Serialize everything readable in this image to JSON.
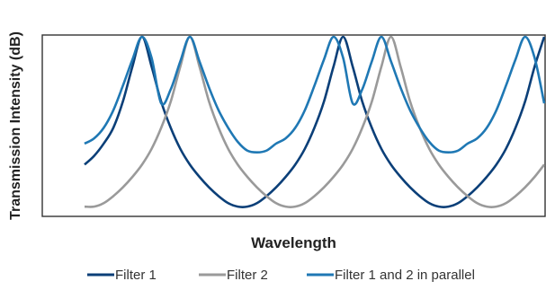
{
  "chart_data": {
    "type": "line",
    "title": "",
    "xlabel": "Wavelength",
    "ylabel": "Transmission Intensity (dB)",
    "xlim": [
      0,
      12
    ],
    "ylim": [
      0,
      1
    ],
    "grid": false,
    "legend_position": "bottom",
    "series": [
      {
        "name": "Filter 1",
        "color": "#0b3f78",
        "x": [
          0.0,
          0.25,
          0.5,
          0.75,
          1.0,
          1.25,
          1.5,
          1.75,
          2.0,
          2.25,
          2.5,
          2.75,
          3.0,
          3.25,
          3.5,
          3.75,
          4.0,
          4.25,
          4.5,
          4.75,
          5.0,
          5.25,
          5.5,
          5.75,
          6.0,
          6.25,
          6.5,
          6.75,
          7.0,
          7.25,
          7.5,
          7.75,
          8.0,
          8.25,
          8.5,
          8.75,
          9.0,
          9.25,
          9.5,
          9.75,
          10.0,
          10.25,
          10.5,
          10.75,
          11.0,
          11.25,
          11.5,
          11.75,
          12.0
        ],
        "y": [
          0.27,
          0.32,
          0.39,
          0.48,
          0.63,
          0.83,
          1.0,
          0.83,
          0.63,
          0.48,
          0.36,
          0.27,
          0.2,
          0.14,
          0.09,
          0.05,
          0.03,
          0.03,
          0.05,
          0.09,
          0.14,
          0.2,
          0.27,
          0.36,
          0.48,
          0.63,
          0.83,
          1.0,
          0.83,
          0.63,
          0.48,
          0.36,
          0.27,
          0.2,
          0.14,
          0.09,
          0.05,
          0.03,
          0.03,
          0.05,
          0.09,
          0.14,
          0.2,
          0.27,
          0.36,
          0.48,
          0.63,
          0.83,
          1.0
        ]
      },
      {
        "name": "Filter 2",
        "color": "#9a9a9a",
        "x": [
          0.0,
          0.25,
          0.5,
          0.75,
          1.0,
          1.25,
          1.5,
          1.75,
          2.0,
          2.25,
          2.5,
          2.75,
          3.0,
          3.25,
          3.5,
          3.75,
          4.0,
          4.25,
          4.5,
          4.75,
          5.0,
          5.25,
          5.5,
          5.75,
          6.0,
          6.25,
          6.5,
          6.75,
          7.0,
          7.25,
          7.5,
          7.75,
          8.0,
          8.25,
          8.5,
          8.75,
          9.0,
          9.25,
          9.5,
          9.75,
          10.0,
          10.25,
          10.5,
          10.75,
          11.0,
          11.25,
          11.5,
          11.75,
          12.0
        ],
        "y": [
          0.03,
          0.03,
          0.05,
          0.09,
          0.14,
          0.2,
          0.27,
          0.36,
          0.48,
          0.63,
          0.83,
          1.0,
          0.83,
          0.63,
          0.48,
          0.36,
          0.27,
          0.2,
          0.14,
          0.09,
          0.05,
          0.03,
          0.03,
          0.05,
          0.09,
          0.14,
          0.2,
          0.27,
          0.36,
          0.48,
          0.63,
          0.83,
          1.0,
          0.83,
          0.63,
          0.48,
          0.36,
          0.27,
          0.2,
          0.14,
          0.09,
          0.05,
          0.03,
          0.03,
          0.05,
          0.09,
          0.14,
          0.2,
          0.27
        ]
      },
      {
        "name": "Filter 1 and 2 in parallel",
        "color": "#1f78b4",
        "x": [
          0.0,
          0.25,
          0.5,
          0.75,
          1.0,
          1.25,
          1.5,
          1.75,
          2.0,
          2.25,
          2.5,
          2.75,
          3.0,
          3.25,
          3.5,
          3.75,
          4.0,
          4.25,
          4.5,
          4.75,
          5.0,
          5.25,
          5.5,
          5.75,
          6.0,
          6.25,
          6.5,
          6.75,
          7.0,
          7.25,
          7.5,
          7.75,
          8.0,
          8.25,
          8.5,
          8.75,
          9.0,
          9.25,
          9.5,
          9.75,
          10.0,
          10.25,
          10.5,
          10.75,
          11.0,
          11.25,
          11.5,
          11.75,
          12.0
        ],
        "y": [
          0.39,
          0.42,
          0.48,
          0.58,
          0.72,
          0.87,
          1.0,
          0.88,
          0.62,
          0.7,
          0.86,
          1.0,
          0.86,
          0.71,
          0.58,
          0.48,
          0.4,
          0.35,
          0.34,
          0.35,
          0.39,
          0.42,
          0.48,
          0.58,
          0.72,
          0.87,
          1.0,
          0.88,
          0.62,
          0.7,
          0.86,
          1.0,
          0.86,
          0.71,
          0.58,
          0.48,
          0.4,
          0.35,
          0.34,
          0.35,
          0.39,
          0.42,
          0.48,
          0.58,
          0.72,
          0.87,
          1.0,
          0.88,
          0.62
        ]
      }
    ]
  }
}
